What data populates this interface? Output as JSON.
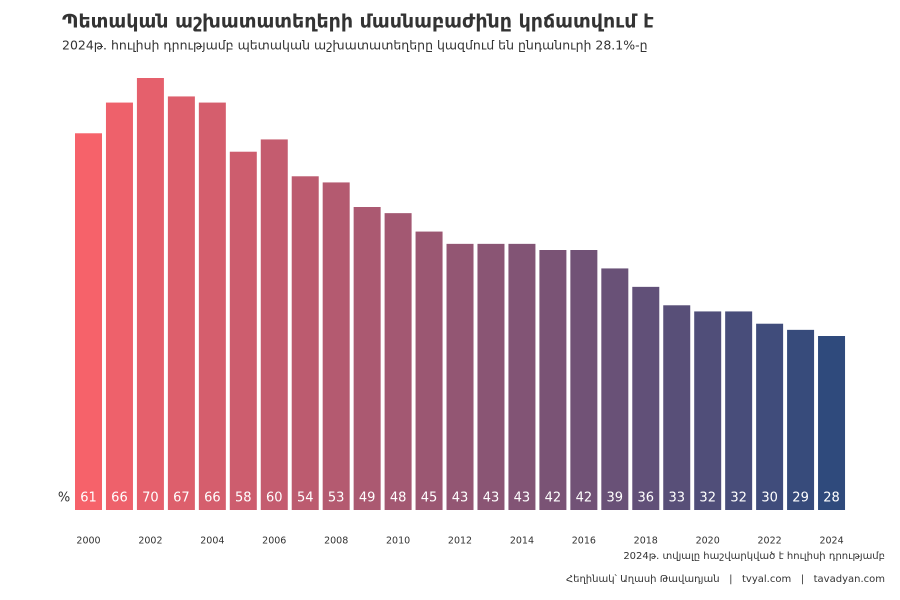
{
  "chart_data": {
    "type": "bar",
    "title": "Պետական աշխատատեղերի մասնաբաժինը կրճատվում է",
    "subtitle": "2024թ. հուլիսի դրությամբ պետական աշխատատեղերը կազմում են ընդանուրի 28.1%-ը",
    "unit": "%",
    "categories": [
      "2000",
      null,
      "2002",
      null,
      "2004",
      null,
      "2006",
      null,
      "2008",
      null,
      "2010",
      null,
      "2012",
      null,
      "2014",
      null,
      "2016",
      null,
      "2018",
      null,
      "2020",
      null,
      "2022",
      null,
      "2024"
    ],
    "values": [
      61,
      66,
      70,
      67,
      66,
      58,
      60,
      54,
      53,
      49,
      48,
      45,
      43,
      43,
      43,
      42,
      42,
      39,
      36,
      33,
      32,
      32,
      30,
      29,
      28
    ],
    "ylim": [
      0,
      70
    ],
    "color_start": "#f6626a",
    "color_end": "#2f4a7c",
    "note": "2024թ. տվյալը հաշվարկված է հուլիսի դրությամբ",
    "credits": "Հեղինակ՝ Աղասի Թավադյան   |   tvyal.com   |   tavadyan.com"
  }
}
